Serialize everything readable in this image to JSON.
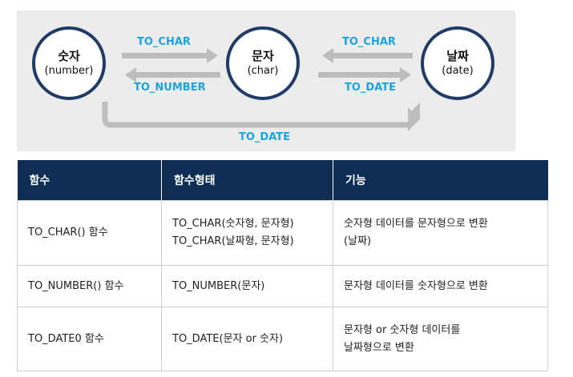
{
  "diagram": {
    "nodes": [
      {
        "main": "숫자",
        "sub": "(number)"
      },
      {
        "main": "문자",
        "sub": "(char)"
      },
      {
        "main": "날짜",
        "sub": "(date)"
      }
    ],
    "arrows": {
      "number_to_char": "TO_CHAR",
      "char_to_number": "TO_NUMBER",
      "date_to_char": "TO_CHAR",
      "char_to_date": "TO_DATE",
      "number_to_date": "TO_DATE"
    },
    "colors": {
      "node_border": "#1f3b66",
      "label": "#1aa3dc",
      "arrow": "#bdbdbd",
      "panel": "#ececec"
    }
  },
  "table": {
    "headers": [
      "함수",
      "함수형태",
      "기능"
    ],
    "rows": [
      {
        "func": "TO_CHAR() 함수",
        "form": [
          "TO_CHAR(숫자형, 문자형)",
          "TO_CHAR(날짜형, 문자형)"
        ],
        "desc": [
          "숫자형 데이터를 문자형으로 변환",
          "(날짜)"
        ]
      },
      {
        "func": "TO_NUMBER() 함수",
        "form": [
          "TO_NUMBER(문자)"
        ],
        "desc": [
          "문자형 데이터를 숫자형으로 변환"
        ]
      },
      {
        "func": "TO_DATE0 함수",
        "form": [
          "TO_DATE(문자 or 숫자)"
        ],
        "desc": [
          "문자형 or 숫자형 데이터를",
          "날짜형으로 변환"
        ]
      }
    ],
    "colors": {
      "header_bg": "#0d2d52",
      "border": "#cfcfcf"
    }
  }
}
